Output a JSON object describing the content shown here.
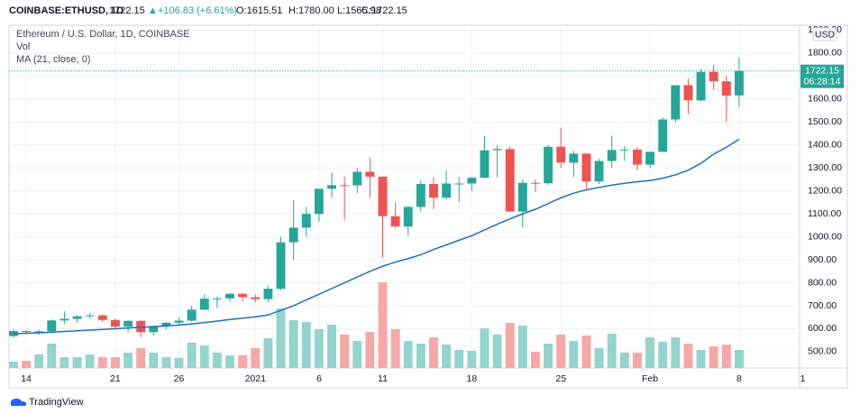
{
  "header": {
    "symbol": "COINBASE:ETHUSD, 1D",
    "price": "1722.15",
    "change": "+106.83 (+6.61%)",
    "o": "O:1615.51",
    "h": "H:1780.00",
    "l": "L:1565.98",
    "c": "C:1722.15"
  },
  "legend": {
    "title": "Ethereum / U.S. Dollar, 1D, COINBASE",
    "vol": "Vol",
    "ma": "MA (21, close, 0)"
  },
  "axis": {
    "currency": "USD",
    "last_price_label": "1722.15",
    "countdown": "06:28:14"
  },
  "footer": {
    "brand": "TradingView"
  },
  "chart_data": {
    "type": "candlestick",
    "up_color": "#26a69a",
    "down_color": "#ef5350",
    "vol_up_color": "#93d4cd",
    "vol_down_color": "#f7a8a6",
    "ma_color": "#1e6fc4",
    "open": [
      568,
      590,
      586,
      589,
      636,
      643,
      654,
      658,
      638,
      609,
      634,
      585,
      611,
      626,
      635,
      683,
      731,
      732,
      752,
      737,
      729,
      774,
      976,
      1040,
      1100,
      1209,
      1225,
      1224,
      1283,
      1262,
      1090,
      1045,
      1130,
      1230,
      1170,
      1229,
      1232,
      1257,
      1377,
      1382,
      1110,
      1235,
      1233,
      1392,
      1323,
      1362,
      1241,
      1330,
      1378,
      1380,
      1314,
      1370,
      1511,
      1660,
      1594,
      1718,
      1677,
      1615.51
    ],
    "high": [
      597,
      593,
      596,
      640,
      676,
      660,
      668,
      662,
      645,
      637,
      636,
      614,
      628,
      648,
      700,
      750,
      740,
      755,
      756,
      749,
      786,
      1000,
      1160,
      1130,
      1210,
      1280,
      1263,
      1300,
      1345,
      1263,
      1150,
      1135,
      1245,
      1260,
      1290,
      1260,
      1260,
      1440,
      1400,
      1395,
      1250,
      1250,
      1400,
      1475,
      1375,
      1365,
      1340,
      1440,
      1395,
      1390,
      1370,
      1520,
      1660,
      1690,
      1730,
      1750,
      1700,
      1780
    ],
    "low": [
      561,
      577,
      574,
      585,
      620,
      627,
      645,
      630,
      601,
      584,
      563,
      569,
      597,
      618,
      630,
      680,
      692,
      718,
      718,
      715,
      716,
      768,
      900,
      1000,
      1065,
      1170,
      1075,
      1190,
      1170,
      910,
      1040,
      1005,
      1110,
      1120,
      1160,
      1150,
      1200,
      1255,
      1260,
      1110,
      1040,
      1195,
      1225,
      1300,
      1260,
      1210,
      1230,
      1300,
      1330,
      1290,
      1300,
      1370,
      1500,
      1535,
      1590,
      1640,
      1500,
      1565.98
    ],
    "close": [
      590,
      586,
      589,
      636,
      643,
      654,
      658,
      638,
      609,
      634,
      585,
      611,
      626,
      635,
      683,
      731,
      732,
      752,
      737,
      729,
      774,
      976,
      1040,
      1100,
      1209,
      1225,
      1224,
      1283,
      1262,
      1090,
      1045,
      1130,
      1230,
      1170,
      1232,
      1232,
      1257,
      1377,
      1382,
      1110,
      1235,
      1233,
      1392,
      1323,
      1362,
      1241,
      1330,
      1378,
      1380,
      1314,
      1370,
      1511,
      1660,
      1594,
      1718,
      1677,
      1615,
      1722.15
    ],
    "volume": [
      7,
      8,
      15,
      27,
      12,
      12,
      15,
      12,
      12,
      17,
      22,
      17,
      12,
      11,
      28,
      25,
      17,
      14,
      14,
      22,
      33,
      66,
      53,
      51,
      43,
      48,
      37,
      30,
      40,
      95,
      43,
      30,
      27,
      34,
      26,
      20,
      19,
      44,
      37,
      50,
      47,
      18,
      27,
      37,
      30,
      36,
      22,
      38,
      17,
      17,
      34,
      29,
      34,
      27,
      20,
      24,
      26,
      20
    ],
    "ma": [
      578,
      580,
      582,
      585,
      588,
      591,
      594,
      597,
      600,
      603,
      606,
      609,
      612,
      616,
      621,
      627,
      633,
      640,
      646,
      652,
      660,
      680,
      700,
      725,
      750,
      775,
      800,
      825,
      850,
      872,
      890,
      905,
      922,
      945,
      965,
      985,
      1005,
      1030,
      1055,
      1078,
      1100,
      1120,
      1145,
      1170,
      1190,
      1205,
      1215,
      1225,
      1233,
      1240,
      1245,
      1255,
      1270,
      1290,
      1320,
      1360,
      1390,
      1425
    ],
    "xlim": [
      -0.35,
      61.75
    ],
    "ylim": [
      429,
      1921
    ],
    "xticks": [
      {
        "value": 1,
        "label": "14"
      },
      {
        "value": 8,
        "label": "21"
      },
      {
        "value": 13,
        "label": "26"
      },
      {
        "value": 19,
        "label": "2021"
      },
      {
        "value": 24,
        "label": "6"
      },
      {
        "value": 29,
        "label": "11"
      },
      {
        "value": 36,
        "label": "18"
      },
      {
        "value": 43,
        "label": "25"
      },
      {
        "value": 50,
        "label": "Feb"
      },
      {
        "value": 57,
        "label": "8"
      },
      {
        "value": 62,
        "label": "1"
      }
    ],
    "yticks": [
      {
        "value": 500,
        "label": "500.00"
      },
      {
        "value": 600,
        "label": "600.00"
      },
      {
        "value": 700,
        "label": "700.00"
      },
      {
        "value": 800,
        "label": "800.00"
      },
      {
        "value": 900,
        "label": "900.00"
      },
      {
        "value": 1000,
        "label": "1000.00"
      },
      {
        "value": 1100,
        "label": "1100.00"
      },
      {
        "value": 1200,
        "label": "1200.00"
      },
      {
        "value": 1300,
        "label": "1300.00"
      },
      {
        "value": 1400,
        "label": "1400.00"
      },
      {
        "value": 1500,
        "label": "1500.00"
      },
      {
        "value": 1600,
        "label": "1600.00"
      },
      {
        "value": 1700,
        "label": "1700.00"
      },
      {
        "value": 1800,
        "label": "1800.00"
      },
      {
        "value": 1900,
        "label": "1900.00"
      }
    ],
    "grid": true
  }
}
